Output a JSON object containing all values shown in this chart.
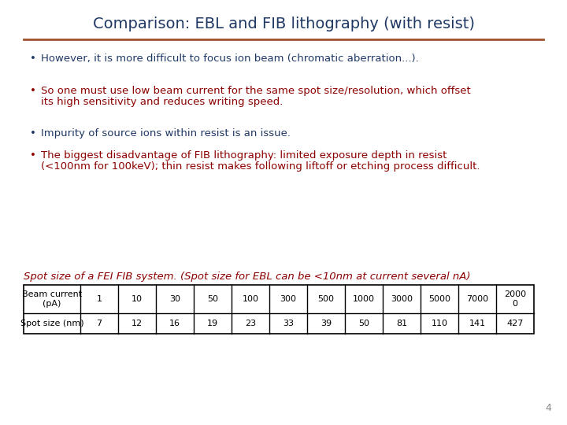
{
  "title": "Comparison: EBL and FIB lithography (with resist)",
  "title_color": "#1F3864",
  "title_fontsize": 14,
  "separator_color": "#A0522D",
  "bg_color": "#FFFFFF",
  "bullets": [
    {
      "text": "However, it is more difficult to focus ion beam (chromatic aberration...).",
      "color": "#1F3864",
      "line2": null
    },
    {
      "text": "So one must use low beam current for the same spot size/resolution, which offset",
      "line2": "its high sensitivity and reduces writing speed.",
      "color": "#8B0000"
    },
    {
      "text": "Impurity of source ions within resist is an issue.",
      "color": "#1F3864",
      "line2": null
    },
    {
      "text": "The biggest disadvantage of FIB lithography: limited exposure depth in resist",
      "line2": "(<100nm for 100keV); thin resist makes following liftoff or etching process difficult.",
      "color": "#8B0000"
    }
  ],
  "table_caption": "Spot size of a FEI FIB system. (Spot size for EBL can be <10nm at current several nA)",
  "table_caption_color": "#8B0000",
  "table_caption_fontsize": 9.5,
  "table_header": [
    "Beam current\n(pA)",
    "1",
    "10",
    "30",
    "50",
    "100",
    "300",
    "500",
    "1000",
    "3000",
    "5000",
    "7000",
    "2000\n0"
  ],
  "table_row2": [
    "Spot size (nm)",
    "7",
    "12",
    "16",
    "19",
    "23",
    "33",
    "39",
    "50",
    "81",
    "110",
    "141",
    "427"
  ],
  "page_number": "4",
  "page_number_color": "#888888",
  "bullet_fontsize": 9.5,
  "table_fontsize": 8
}
